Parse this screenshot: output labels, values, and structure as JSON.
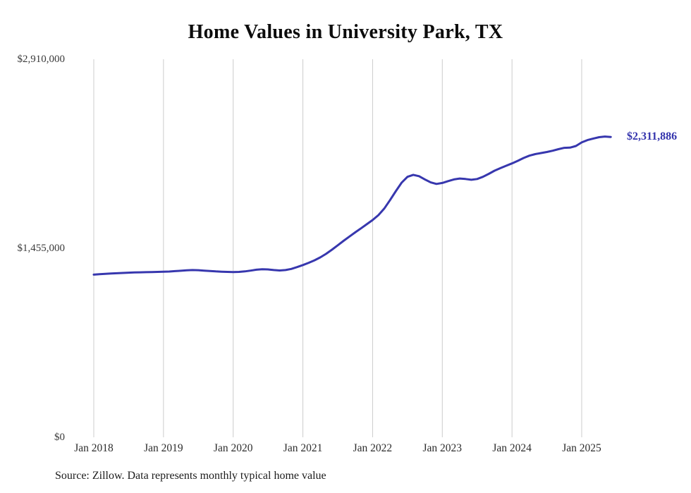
{
  "title": "Home Values in University Park, TX",
  "source_note": "Source: Zillow. Data represents monthly typical home value",
  "end_label": "$2,311,886",
  "colors": {
    "line": "#3737ae",
    "end_label": "#3434ad",
    "grid": "#cccccc",
    "axis_text": "#3a3a3a",
    "title_text": "#0c0c0c"
  },
  "chart_data": {
    "type": "line",
    "title": "Home Values in University Park, TX",
    "xlabel": "",
    "ylabel": "",
    "grid": "vertical-only",
    "legend": false,
    "ylim": [
      0,
      2910000
    ],
    "yticks": [
      {
        "value": 0,
        "label": "$0"
      },
      {
        "value": 1455000,
        "label": "$1,455,000"
      },
      {
        "value": 2910000,
        "label": "$2,910,000"
      }
    ],
    "xticks": [
      {
        "index": 0,
        "label": "Jan 2018"
      },
      {
        "index": 12,
        "label": "Jan 2019"
      },
      {
        "index": 24,
        "label": "Jan 2020"
      },
      {
        "index": 36,
        "label": "Jan 2021"
      },
      {
        "index": 48,
        "label": "Jan 2022"
      },
      {
        "index": 60,
        "label": "Jan 2023"
      },
      {
        "index": 72,
        "label": "Jan 2024"
      },
      {
        "index": 84,
        "label": "Jan 2025"
      }
    ],
    "x": [
      "2018-01",
      "2018-02",
      "2018-03",
      "2018-04",
      "2018-05",
      "2018-06",
      "2018-07",
      "2018-08",
      "2018-09",
      "2018-10",
      "2018-11",
      "2018-12",
      "2019-01",
      "2019-02",
      "2019-03",
      "2019-04",
      "2019-05",
      "2019-06",
      "2019-07",
      "2019-08",
      "2019-09",
      "2019-10",
      "2019-11",
      "2019-12",
      "2020-01",
      "2020-02",
      "2020-03",
      "2020-04",
      "2020-05",
      "2020-06",
      "2020-07",
      "2020-08",
      "2020-09",
      "2020-10",
      "2020-11",
      "2020-12",
      "2021-01",
      "2021-02",
      "2021-03",
      "2021-04",
      "2021-05",
      "2021-06",
      "2021-07",
      "2021-08",
      "2021-09",
      "2021-10",
      "2021-11",
      "2021-12",
      "2022-01",
      "2022-02",
      "2022-03",
      "2022-04",
      "2022-05",
      "2022-06",
      "2022-07",
      "2022-08",
      "2022-09",
      "2022-10",
      "2022-11",
      "2022-12",
      "2023-01",
      "2023-02",
      "2023-03",
      "2023-04",
      "2023-05",
      "2023-06",
      "2023-07",
      "2023-08",
      "2023-09",
      "2023-10",
      "2023-11",
      "2023-12",
      "2024-01",
      "2024-02",
      "2024-03",
      "2024-04",
      "2024-05",
      "2024-06",
      "2024-07",
      "2024-08",
      "2024-09",
      "2024-10",
      "2024-11",
      "2024-12",
      "2025-01",
      "2025-02",
      "2025-03",
      "2025-04",
      "2025-05",
      "2025-06"
    ],
    "values": [
      1252000,
      1255000,
      1258000,
      1261000,
      1263000,
      1265000,
      1267000,
      1269000,
      1270000,
      1271000,
      1272000,
      1273000,
      1274000,
      1276000,
      1279000,
      1282000,
      1285000,
      1287000,
      1286000,
      1283000,
      1280000,
      1277000,
      1275000,
      1273000,
      1272000,
      1273000,
      1277000,
      1283000,
      1290000,
      1294000,
      1292000,
      1287000,
      1284000,
      1287000,
      1296000,
      1310000,
      1326000,
      1343000,
      1362000,
      1385000,
      1412000,
      1444000,
      1478000,
      1512000,
      1545000,
      1577000,
      1608000,
      1640000,
      1672000,
      1710000,
      1760000,
      1825000,
      1895000,
      1960000,
      2005000,
      2020000,
      2010000,
      1985000,
      1962000,
      1950000,
      1958000,
      1972000,
      1985000,
      1992000,
      1988000,
      1982000,
      1988000,
      2005000,
      2028000,
      2052000,
      2072000,
      2090000,
      2108000,
      2128000,
      2150000,
      2168000,
      2180000,
      2188000,
      2196000,
      2206000,
      2218000,
      2228000,
      2230000,
      2242000,
      2270000,
      2288000,
      2300000,
      2310000,
      2315000,
      2311886
    ]
  }
}
